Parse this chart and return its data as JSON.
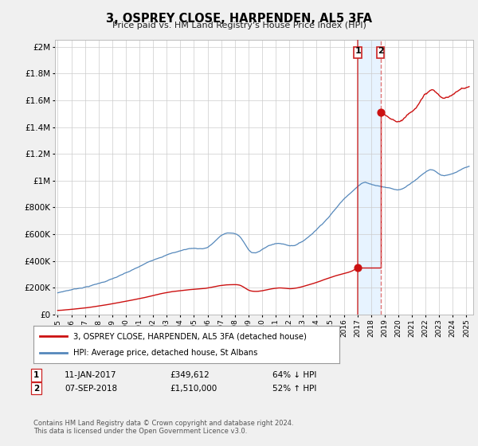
{
  "title": "3, OSPREY CLOSE, HARPENDEN, AL5 3FA",
  "subtitle": "Price paid vs. HM Land Registry's House Price Index (HPI)",
  "hpi_color": "#5588bb",
  "property_color": "#cc1111",
  "vline1_color": "#cc2222",
  "vline2_color": "#dd6666",
  "shade_color": "#ddeeff",
  "background_color": "#f0f0f0",
  "plot_bg_color": "#ffffff",
  "xmin": 1994.8,
  "xmax": 2025.5,
  "ymin": 0,
  "ymax": 2000000,
  "yticks": [
    0,
    200000,
    400000,
    600000,
    800000,
    1000000,
    1200000,
    1400000,
    1600000,
    1800000,
    2000000
  ],
  "ytick_labels": [
    "£0",
    "£200K",
    "£400K",
    "£600K",
    "£800K",
    "£1M",
    "£1.2M",
    "£1.4M",
    "£1.6M",
    "£1.8M",
    "£2M"
  ],
  "sale1_x": 2017.03,
  "sale1_y": 349612,
  "sale2_x": 2018.7,
  "sale2_y": 1510000,
  "legend_line1": "3, OSPREY CLOSE, HARPENDEN, AL5 3FA (detached house)",
  "legend_line2": "HPI: Average price, detached house, St Albans",
  "sale1_date": "11-JAN-2017",
  "sale1_price": "£349,612",
  "sale1_hpi": "64% ↓ HPI",
  "sale2_date": "07-SEP-2018",
  "sale2_price": "£1,510,000",
  "sale2_hpi": "52% ↑ HPI",
  "footer": "Contains HM Land Registry data © Crown copyright and database right 2024.\nThis data is licensed under the Open Government Licence v3.0."
}
